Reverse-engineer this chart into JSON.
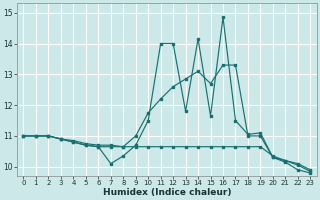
{
  "xlabel": "Humidex (Indice chaleur)",
  "bg_color": "#cce8e8",
  "grid_color": "#ffffff",
  "line_color": "#1a7070",
  "xlim": [
    -0.5,
    23.5
  ],
  "ylim": [
    9.7,
    15.3
  ],
  "xticks": [
    0,
    1,
    2,
    3,
    4,
    5,
    6,
    7,
    8,
    9,
    10,
    11,
    12,
    13,
    14,
    15,
    16,
    17,
    18,
    19,
    20,
    21,
    22,
    23
  ],
  "yticks": [
    10,
    11,
    12,
    13,
    14,
    15
  ],
  "series": [
    {
      "x": [
        0,
        1,
        2,
        3,
        4,
        5,
        6,
        7,
        8,
        9,
        10,
        11,
        12,
        13,
        14,
        15,
        16,
        17,
        18,
        19,
        20,
        21,
        22,
        23
      ],
      "y": [
        11.0,
        11.0,
        11.0,
        10.9,
        10.8,
        10.7,
        10.65,
        10.1,
        10.35,
        10.7,
        11.5,
        14.0,
        14.0,
        11.8,
        14.15,
        11.65,
        14.85,
        11.5,
        11.05,
        11.1,
        10.3,
        10.15,
        9.9,
        9.8
      ]
    },
    {
      "x": [
        0,
        1,
        2,
        3,
        4,
        5,
        6,
        7,
        8,
        9,
        10,
        11,
        12,
        13,
        14,
        15,
        16,
        17,
        18,
        19,
        20,
        21,
        22,
        23
      ],
      "y": [
        11.0,
        11.0,
        11.0,
        10.9,
        10.85,
        10.75,
        10.7,
        10.7,
        10.65,
        11.0,
        11.75,
        12.2,
        12.6,
        12.85,
        13.1,
        12.7,
        13.3,
        13.3,
        11.0,
        11.0,
        10.3,
        10.2,
        10.1,
        9.9
      ]
    },
    {
      "x": [
        0,
        1,
        2,
        3,
        4,
        5,
        6,
        7,
        8,
        9,
        10,
        11,
        12,
        13,
        14,
        15,
        16,
        17,
        18,
        19,
        20,
        21,
        22,
        23
      ],
      "y": [
        11.0,
        11.0,
        11.0,
        10.9,
        10.8,
        10.7,
        10.65,
        10.65,
        10.65,
        10.65,
        10.65,
        10.65,
        10.65,
        10.65,
        10.65,
        10.65,
        10.65,
        10.65,
        10.65,
        10.65,
        10.35,
        10.2,
        10.05,
        9.85
      ]
    }
  ]
}
